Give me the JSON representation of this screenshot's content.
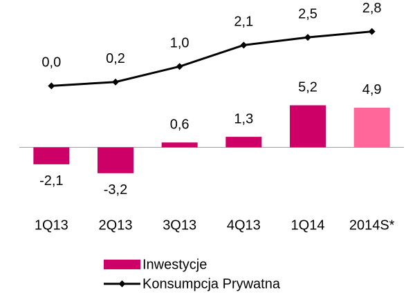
{
  "chart_data": {
    "type": "bar-line",
    "categories": [
      "1Q13",
      "2Q13",
      "3Q13",
      "4Q13",
      "1Q14",
      "2014S*"
    ],
    "series": [
      {
        "name": "Inwestycje",
        "type": "bar",
        "color": "#cc0066",
        "colors": [
          "#cc0066",
          "#cc0066",
          "#cc0066",
          "#cc0066",
          "#cc0066",
          "#ff6699"
        ],
        "values": [
          -2.1,
          -3.2,
          0.6,
          1.3,
          5.2,
          4.9
        ],
        "value_labels": [
          "-2,1",
          "-3,2",
          "0,6",
          "1,3",
          "5,2",
          "4,9"
        ]
      },
      {
        "name": "Konsumpcja Prywatna",
        "type": "line",
        "axis": "y2",
        "color": "#000000",
        "values": [
          0.0,
          0.2,
          1.0,
          2.1,
          2.5,
          2.8
        ],
        "value_labels": [
          "0,0",
          "0,2",
          "1,0",
          "2,1",
          "2,5",
          "2,8"
        ]
      }
    ],
    "ylim": [
      -8,
      16
    ],
    "y2lim": [
      -6.5,
      3.5
    ],
    "legend": "bottom"
  }
}
